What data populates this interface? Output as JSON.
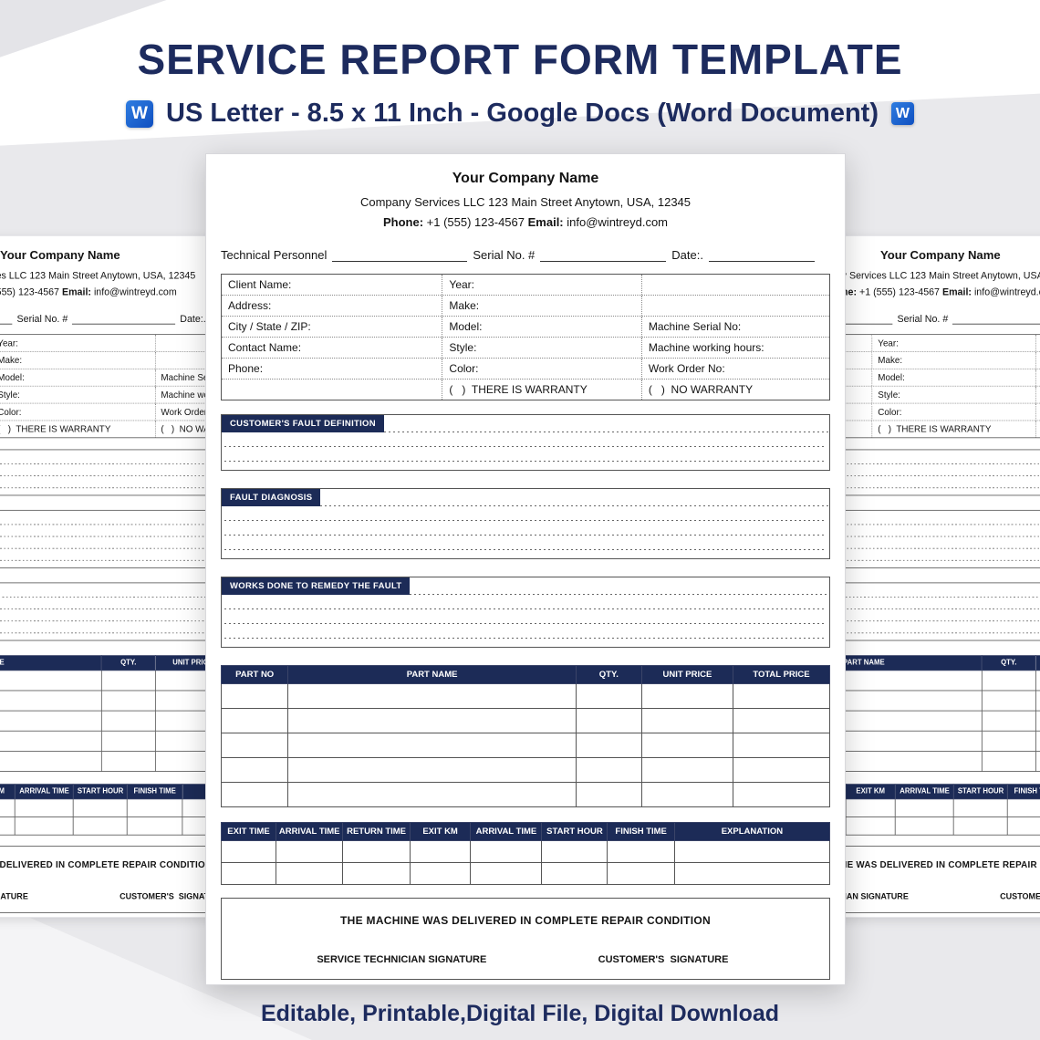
{
  "page": {
    "title": "SERVICE REPORT FORM TEMPLATE",
    "subtitle": "US Letter - 8.5 x 11 Inch - Google Docs (Word Document)",
    "footer": "Editable, Printable,Digital File, Digital Download",
    "word_icon_letter": "W"
  },
  "colors": {
    "heading_navy": "#1d2b5e",
    "form_navy": "#1c2b57",
    "word_blue": "#1863d6",
    "background_gray": "#e9e9ec"
  },
  "form": {
    "company_name": "Your Company Name",
    "company_address": "Company Services LLC 123 Main Street Anytown, USA, 12345",
    "phone_label": "Phone:",
    "phone_value": "+1 (555) 123-4567",
    "email_label": "Email:",
    "email_value": "info@wintreyd.com",
    "tech_line": {
      "technical_personnel": "Technical Personnel",
      "serial_no": "Serial No. #",
      "date": "Date:."
    },
    "client_table": {
      "rows": [
        [
          "Client Name:",
          "Year:",
          ""
        ],
        [
          "Address:",
          "Make:",
          ""
        ],
        [
          "City / State / ZIP:",
          "Model:",
          "Machine Serial No:"
        ],
        [
          "Contact Name:",
          "Style:",
          "Machine working hours:"
        ],
        [
          "Phone:",
          "Color:",
          "Work Order No:"
        ],
        [
          "",
          "(   )  THERE IS WARRANTY",
          "(   )  NO WARRANTY"
        ]
      ]
    },
    "sections": [
      {
        "label": "CUSTOMER'S FAULT DEFINITION",
        "lines": 2
      },
      {
        "label": "FAULT DIAGNOSIS",
        "lines": 3
      },
      {
        "label": "WORKS DONE TO REMEDY THE FAULT",
        "lines": 3
      }
    ],
    "parts_table": {
      "headers": [
        "PART NO",
        "PART NAME",
        "QTY.",
        "UNIT PRICE",
        "TOTAL PRICE"
      ],
      "empty_rows": 5
    },
    "time_table": {
      "headers": [
        "EXIT TIME",
        "ARRIVAL TIME",
        "RETURN TIME",
        "EXIT KM",
        "ARRIVAL TIME",
        "START HOUR",
        "FINISH TIME",
        "EXPLANATION"
      ],
      "empty_rows": 2
    },
    "delivery": {
      "statement": "THE MACHINE WAS DELIVERED IN COMPLETE REPAIR CONDITION",
      "tech_sig": "SERVICE TECHNICIAN SIGNATURE",
      "cust_sig": "CUSTOMER'S  SIGNATURE"
    }
  }
}
